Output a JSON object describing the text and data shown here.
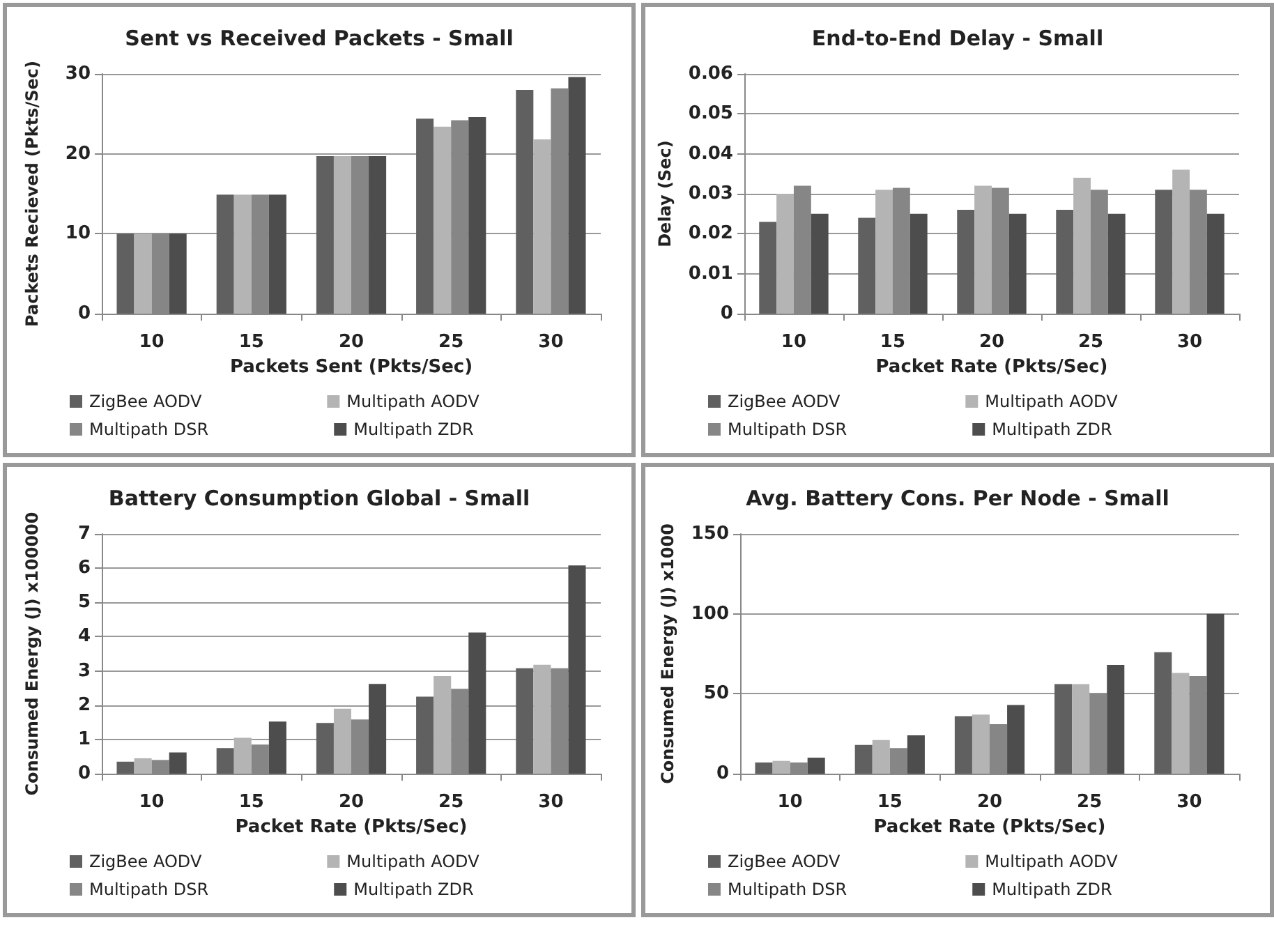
{
  "chart_data": [
    {
      "type": "bar",
      "title": "Sent vs Received Packets - Small",
      "xlabel": "Packets Sent (Pkts/Sec)",
      "ylabel": "Packets Recieved (Pkts/Sec)",
      "categories": [
        "10",
        "15",
        "20",
        "25",
        "30"
      ],
      "ylim": [
        0,
        30
      ],
      "yticks": [
        0,
        10,
        20,
        30
      ],
      "grid": "y",
      "legend": "bottom",
      "series": [
        {
          "name": "ZigBee AODV",
          "color": "#606060",
          "values": [
            10,
            14.9,
            19.7,
            24.4,
            28
          ]
        },
        {
          "name": "Multipath AODV",
          "color": "#b4b4b4",
          "values": [
            10,
            14.9,
            19.7,
            23.4,
            21.8
          ]
        },
        {
          "name": "Multipath DSR",
          "color": "#868686",
          "values": [
            10,
            14.9,
            19.7,
            24.2,
            28.2
          ]
        },
        {
          "name": "Multipath ZDR",
          "color": "#4d4d4d",
          "values": [
            10,
            14.9,
            19.7,
            24.6,
            29.6
          ]
        }
      ]
    },
    {
      "type": "bar",
      "title": "End-to-End Delay - Small",
      "xlabel": "Packet Rate (Pkts/Sec)",
      "ylabel": "Delay (Sec)",
      "categories": [
        "10",
        "15",
        "20",
        "25",
        "30"
      ],
      "ylim": [
        0,
        0.06
      ],
      "yticks": [
        0,
        0.01,
        0.02,
        0.03,
        0.04,
        0.05,
        0.06
      ],
      "grid": "y",
      "legend": "bottom",
      "series": [
        {
          "name": "ZigBee AODV",
          "color": "#606060",
          "values": [
            0.023,
            0.024,
            0.026,
            0.026,
            0.031
          ]
        },
        {
          "name": "Multipath AODV",
          "color": "#b4b4b4",
          "values": [
            0.03,
            0.031,
            0.032,
            0.034,
            0.036
          ]
        },
        {
          "name": "Multipath DSR",
          "color": "#868686",
          "values": [
            0.032,
            0.0315,
            0.0315,
            0.031,
            0.031
          ]
        },
        {
          "name": "Multipath ZDR",
          "color": "#4d4d4d",
          "values": [
            0.025,
            0.025,
            0.025,
            0.025,
            0.025
          ]
        }
      ]
    },
    {
      "type": "bar",
      "title": "Battery Consumption Global - Small",
      "xlabel": "Packet Rate (Pkts/Sec)",
      "ylabel": "Consumed Energy (J) x100000",
      "categories": [
        "10",
        "15",
        "20",
        "25",
        "30"
      ],
      "ylim": [
        0,
        7
      ],
      "yticks": [
        0,
        1,
        2,
        3,
        4,
        5,
        6,
        7
      ],
      "grid": "y",
      "legend": "bottom",
      "series": [
        {
          "name": "ZigBee AODV",
          "color": "#606060",
          "values": [
            0.35,
            0.75,
            1.48,
            2.25,
            3.08
          ]
        },
        {
          "name": "Multipath AODV",
          "color": "#b4b4b4",
          "values": [
            0.45,
            1.05,
            1.9,
            2.85,
            3.18
          ]
        },
        {
          "name": "Multipath DSR",
          "color": "#868686",
          "values": [
            0.4,
            0.85,
            1.58,
            2.48,
            3.08
          ]
        },
        {
          "name": "Multipath ZDR",
          "color": "#4d4d4d",
          "values": [
            0.62,
            1.52,
            2.62,
            4.12,
            6.08
          ]
        }
      ]
    },
    {
      "type": "bar",
      "title": "Avg. Battery Cons. Per Node - Small",
      "xlabel": "Packet Rate (Pkts/Sec)",
      "ylabel": "Consumed Energy (J) x1000",
      "categories": [
        "10",
        "15",
        "20",
        "25",
        "30"
      ],
      "ylim": [
        0,
        150
      ],
      "yticks": [
        0,
        50,
        100,
        150
      ],
      "grid": "y",
      "legend": "bottom",
      "series": [
        {
          "name": "ZigBee AODV",
          "color": "#606060",
          "values": [
            7,
            18,
            36,
            56,
            76
          ]
        },
        {
          "name": "Multipath AODV",
          "color": "#b4b4b4",
          "values": [
            8,
            21,
            37,
            56,
            63
          ]
        },
        {
          "name": "Multipath DSR",
          "color": "#868686",
          "values": [
            7,
            16,
            31,
            50,
            61
          ]
        },
        {
          "name": "Multipath ZDR",
          "color": "#4d4d4d",
          "values": [
            10,
            24,
            43,
            68,
            100
          ]
        }
      ]
    }
  ]
}
